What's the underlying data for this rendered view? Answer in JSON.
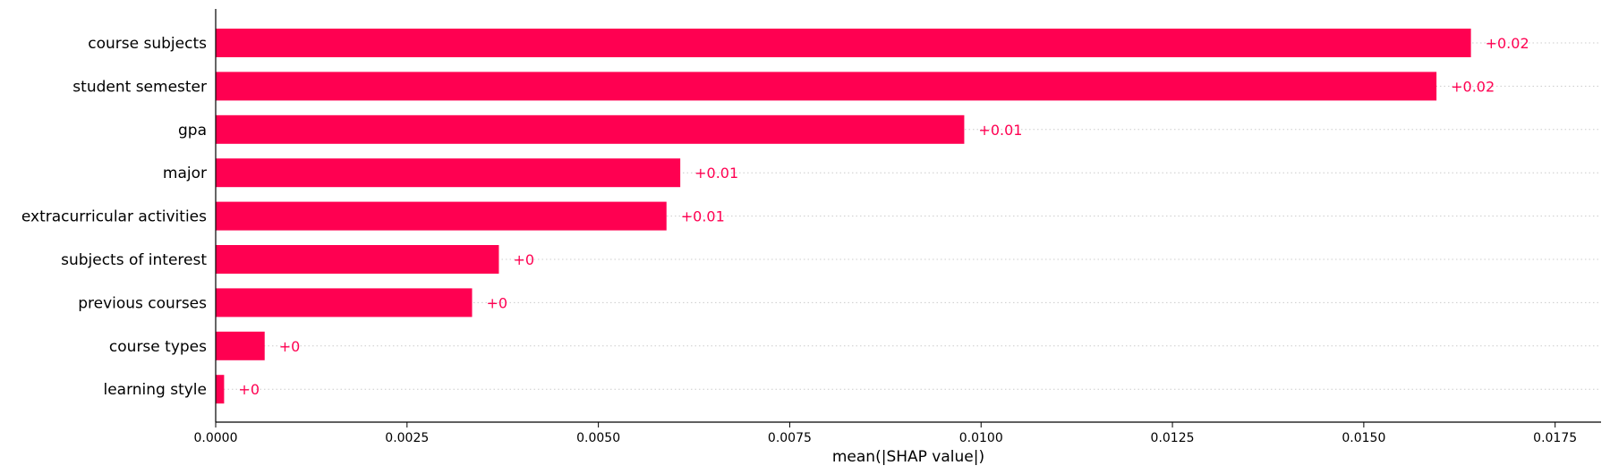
{
  "chart_data": {
    "type": "bar",
    "orientation": "horizontal",
    "categories": [
      "course subjects",
      "student semester",
      "gpa",
      "major",
      "extracurricular activities",
      "subjects of interest",
      "previous courses",
      "course types",
      "learning style"
    ],
    "values": [
      0.0164,
      0.01595,
      0.00978,
      0.00607,
      0.00589,
      0.0037,
      0.00335,
      0.00064,
      0.00011
    ],
    "value_labels": [
      "+0.02",
      "+0.02",
      "+0.01",
      "+0.01",
      "+0.01",
      "+0",
      "+0",
      "+0",
      "+0"
    ],
    "xlabel": "mean(|SHAP value|)",
    "xlim": [
      0,
      0.0181
    ],
    "x_ticks": [
      0.0,
      0.0025,
      0.005,
      0.0075,
      0.01,
      0.0125,
      0.015,
      0.0175
    ],
    "x_tick_labels": [
      "0.0000",
      "0.0025",
      "0.0050",
      "0.0075",
      "0.0100",
      "0.0125",
      "0.0150",
      "0.0175"
    ],
    "bar_color": "#ff0051",
    "grid": "horizontal dotted",
    "legend": "none"
  }
}
